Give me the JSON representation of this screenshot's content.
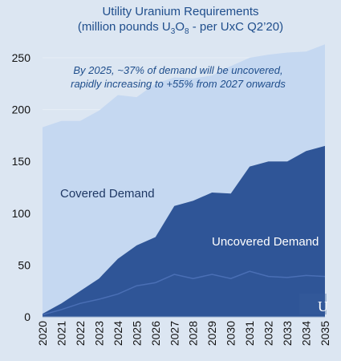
{
  "chart_data": {
    "type": "area",
    "title_line1": "Utility Uranium Requirements",
    "title_line2_prefix": "(million pounds U",
    "title_sub1": "3",
    "title_mid": "O",
    "title_sub2": "8",
    "title_line2_suffix": " - per UxC Q2’20)",
    "annotation_line1": "By 2025, ~37% of demand will be uncovered,",
    "annotation_line2": "rapidly increasing to +55% from 2027 onwards",
    "x": [
      "2020",
      "2021",
      "2022",
      "2023",
      "2024",
      "2025",
      "2026",
      "2027",
      "2028",
      "2029",
      "2030",
      "2031",
      "2032",
      "2033",
      "2034",
      "2035"
    ],
    "ylim": [
      0,
      250
    ],
    "yticks": [
      0,
      50,
      100,
      150,
      200,
      250
    ],
    "series": [
      {
        "name": "Covered Demand",
        "values": [
          180,
          176,
          164,
          162,
          158,
          143,
          148,
          124,
          118,
          113,
          123,
          105,
          103,
          105,
          96,
          98
        ],
        "color": "#c5d8f1"
      },
      {
        "name": "Uncovered Demand",
        "values": [
          3,
          13,
          25,
          37,
          56,
          69,
          77,
          107,
          112,
          120,
          119,
          145,
          150,
          150,
          160,
          165
        ],
        "color": "#2f5597"
      }
    ],
    "inner_line_values": [
      2,
      7,
      13,
      17,
      22,
      30,
      33,
      41,
      37,
      41,
      37,
      44,
      39,
      38,
      40,
      39
    ],
    "inner_line_color": "#4a6fb5",
    "logo_text": "U"
  }
}
